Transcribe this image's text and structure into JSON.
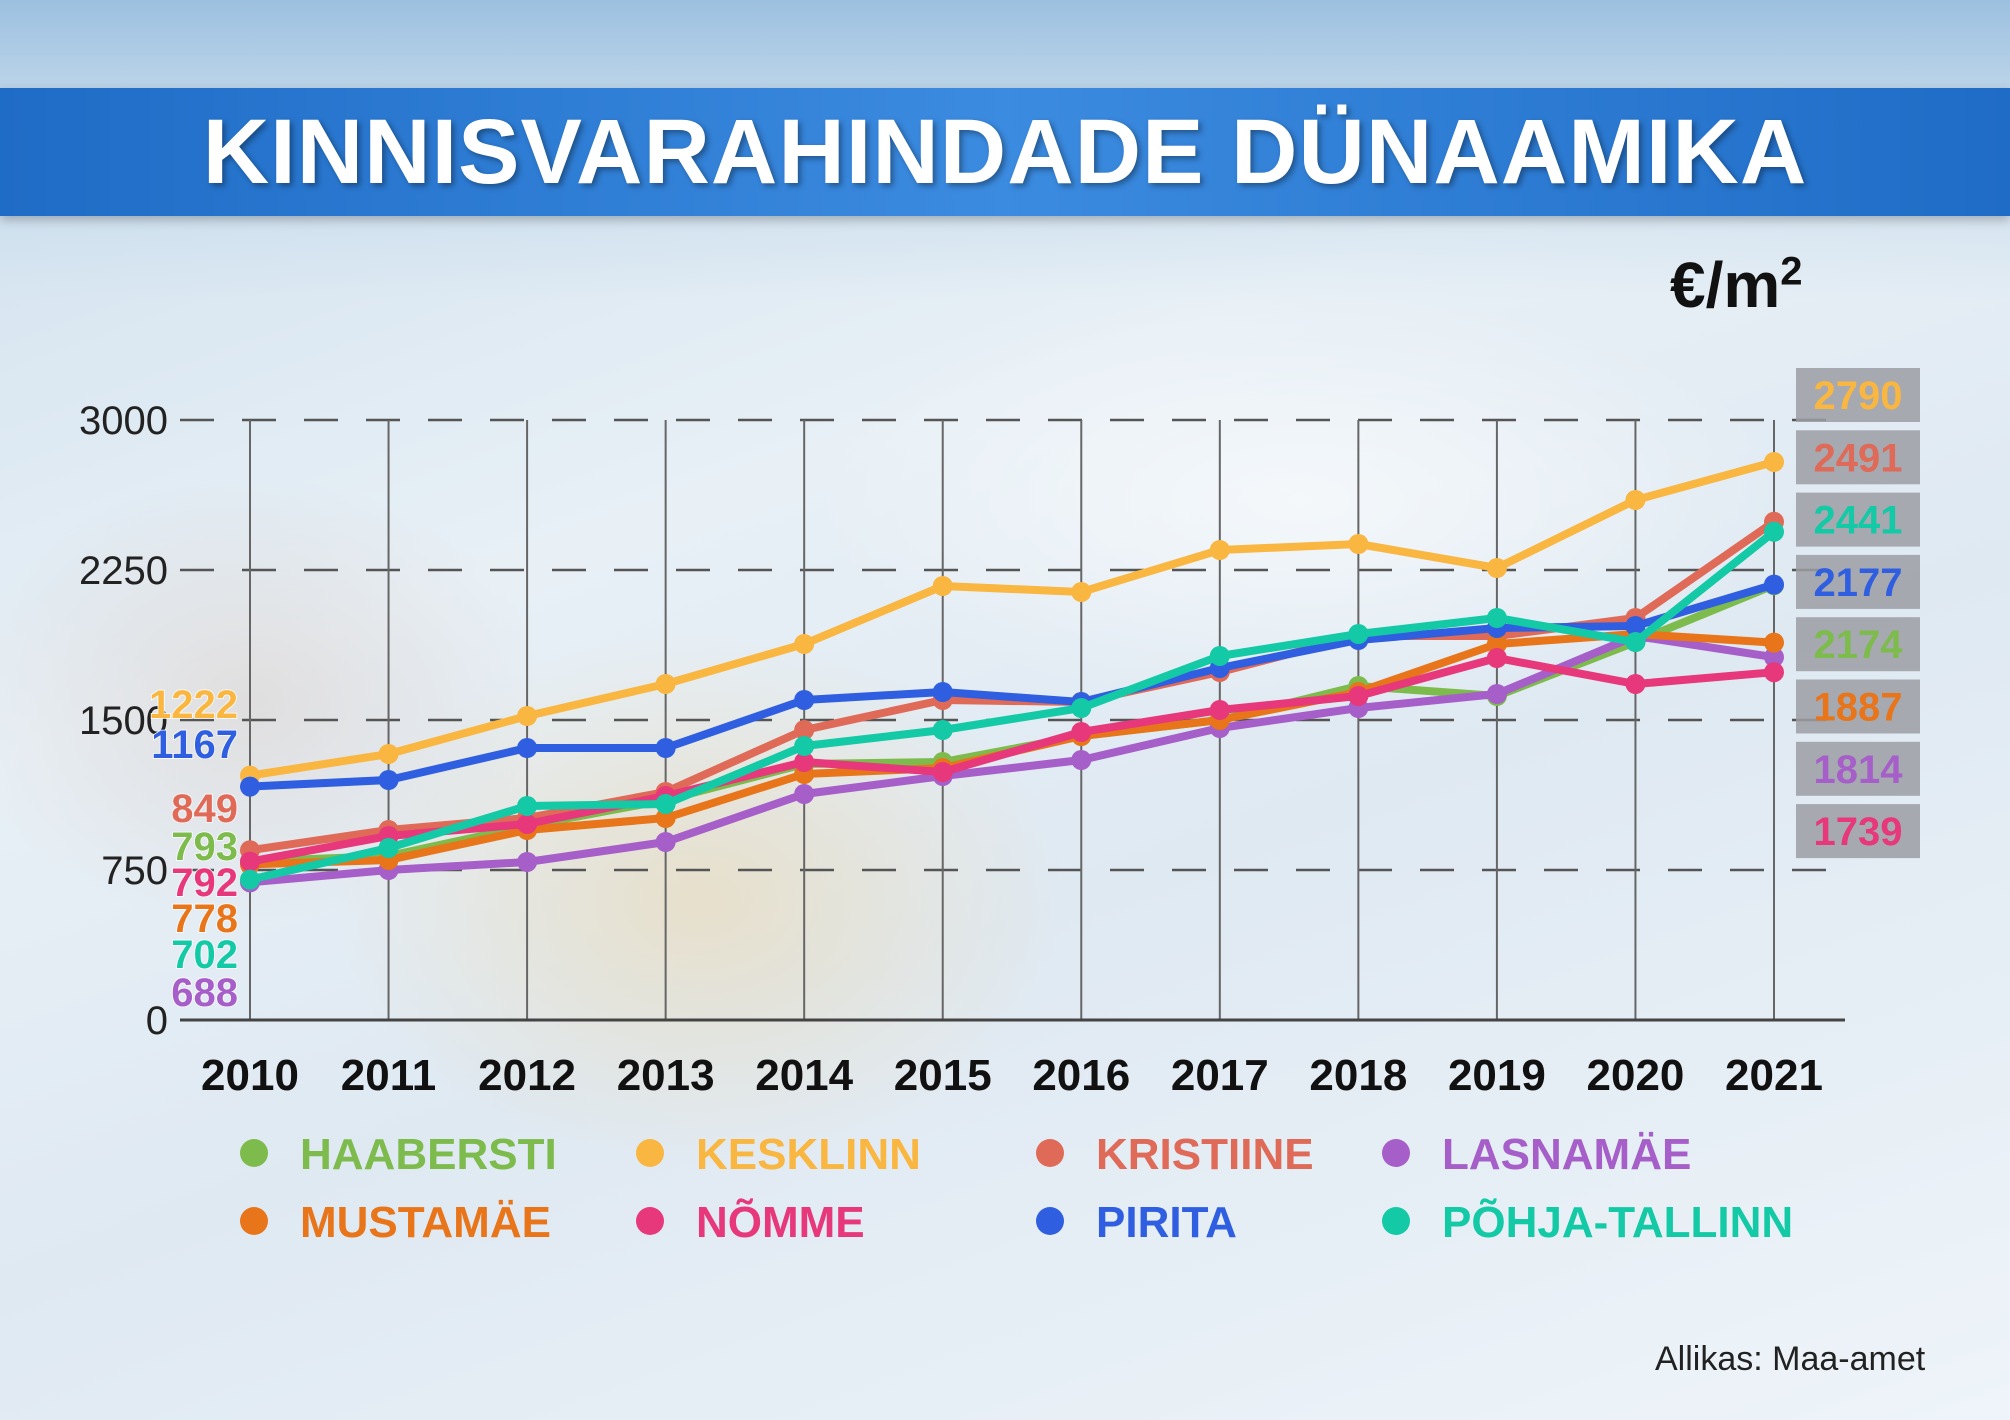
{
  "title": "KINNISVARAHINDADE DÜNAAMIKA",
  "unit": "€/m",
  "unit_sup": "2",
  "source": "Allikas: Maa-amet",
  "chart_data": {
    "type": "line",
    "x": [
      "2010",
      "2011",
      "2012",
      "2013",
      "2014",
      "2015",
      "2016",
      "2017",
      "2018",
      "2019",
      "2020",
      "2021"
    ],
    "ylim": [
      0,
      3000
    ],
    "yticks": [
      "0",
      "750",
      "1500",
      "2250",
      "3000"
    ],
    "grid": true,
    "series": [
      {
        "name": "HAABERSTI",
        "color": "#7dbb4c",
        "values": [
          793,
          820,
          970,
          1100,
          1280,
          1290,
          1420,
          1500,
          1670,
          1620,
          1890,
          2174
        ]
      },
      {
        "name": "KESKLINN",
        "color": "#f9b640",
        "values": [
          1222,
          1330,
          1520,
          1680,
          1880,
          2170,
          2140,
          2350,
          2380,
          2260,
          2600,
          2790
        ]
      },
      {
        "name": "KRISTIINE",
        "color": "#e06a58",
        "values": [
          849,
          950,
          1010,
          1140,
          1450,
          1600,
          1590,
          1740,
          1920,
          1920,
          2010,
          2491
        ]
      },
      {
        "name": "LASNAMÄE",
        "color": "#a65ec9",
        "values": [
          688,
          750,
          790,
          890,
          1130,
          1220,
          1300,
          1460,
          1560,
          1630,
          1920,
          1814
        ]
      },
      {
        "name": "MUSTAMÄE",
        "color": "#e8751a",
        "values": [
          778,
          800,
          950,
          1010,
          1230,
          1260,
          1420,
          1500,
          1640,
          1880,
          1930,
          1887
        ]
      },
      {
        "name": "NÕMME",
        "color": "#e6387a",
        "values": [
          792,
          920,
          980,
          1120,
          1290,
          1240,
          1440,
          1550,
          1620,
          1810,
          1680,
          1739
        ]
      },
      {
        "name": "PIRITA",
        "color": "#2f5ee0",
        "values": [
          1167,
          1200,
          1360,
          1360,
          1600,
          1640,
          1590,
          1760,
          1900,
          1960,
          1970,
          2177
        ]
      },
      {
        "name": "PÕHJA-TALLINN",
        "color": "#14c9a6",
        "values": [
          702,
          860,
          1070,
          1080,
          1370,
          1450,
          1560,
          1820,
          1930,
          2010,
          1890,
          2441
        ]
      }
    ],
    "start_labels": [
      {
        "text": "1222",
        "color": "#f9b640"
      },
      {
        "text": "1167",
        "color": "#2f5ee0"
      },
      {
        "text": "849",
        "color": "#e06a58"
      },
      {
        "text": "793",
        "color": "#7dbb4c"
      },
      {
        "text": "792",
        "color": "#e6387a"
      },
      {
        "text": "778",
        "color": "#e8751a"
      },
      {
        "text": "702",
        "color": "#14c9a6"
      },
      {
        "text": "688",
        "color": "#a65ec9"
      }
    ],
    "end_labels": [
      {
        "text": "2790",
        "color": "#f9b640"
      },
      {
        "text": "2491",
        "color": "#e06a58"
      },
      {
        "text": "2441",
        "color": "#14c9a6"
      },
      {
        "text": "2177",
        "color": "#2f5ee0"
      },
      {
        "text": "2174",
        "color": "#7dbb4c"
      },
      {
        "text": "1887",
        "color": "#e8751a"
      },
      {
        "text": "1814",
        "color": "#a65ec9"
      },
      {
        "text": "1739",
        "color": "#e6387a"
      }
    ],
    "legend_placement": "bottom"
  }
}
